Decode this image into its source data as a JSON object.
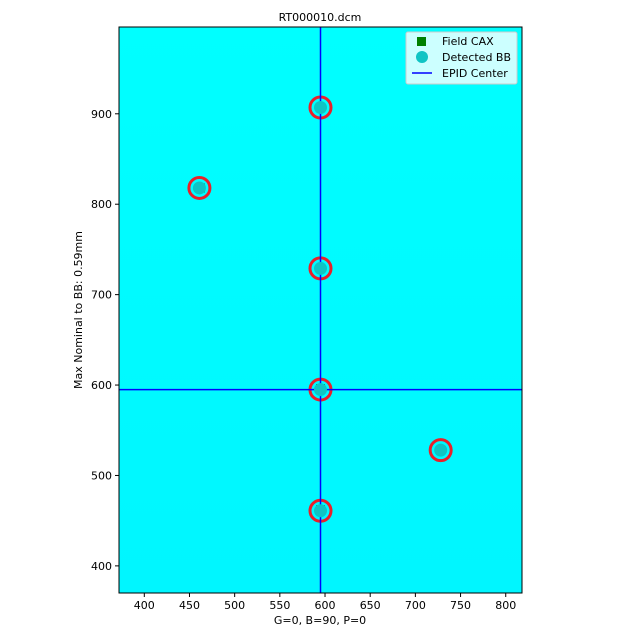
{
  "chart_data": {
    "type": "scatter",
    "title": "RT000010.dcm",
    "xlabel": "G=0, B=90, P=0",
    "ylabel": "Max Nominal to BB: 0.59mm",
    "xlim": [
      372,
      818
    ],
    "ylim": [
      996,
      370
    ],
    "y_inverted": true,
    "xticks": [
      400,
      450,
      500,
      550,
      600,
      650,
      700,
      750,
      800
    ],
    "yticks": [
      400,
      500,
      600,
      700,
      800,
      900
    ],
    "grid": false,
    "legend_position": "top-right",
    "background_color": "#00ffff",
    "field_color": "#ff00ff",
    "field_edge_color": "#e8202a",
    "epid_center": {
      "x": 595,
      "y": 595
    },
    "fields": [
      {
        "x": 595,
        "y": 462,
        "half_width": 45,
        "half_height": 50
      },
      {
        "x": 728,
        "y": 528,
        "half_width": 45,
        "half_height": 50
      },
      {
        "x": 595,
        "y": 596,
        "half_width": 45,
        "half_height": 50
      },
      {
        "x": 595,
        "y": 729,
        "half_width": 45,
        "half_height": 50
      },
      {
        "x": 462,
        "y": 818,
        "half_width": 45,
        "half_height": 50
      },
      {
        "x": 595,
        "y": 907,
        "half_width": 45,
        "half_height": 50
      }
    ],
    "series": [
      {
        "name": "Field CAX",
        "marker": "square",
        "color": "#008000",
        "points": [
          [
            595,
            462
          ],
          [
            728,
            528
          ],
          [
            595,
            596
          ],
          [
            595,
            729
          ],
          [
            462,
            818
          ],
          [
            595,
            907
          ]
        ]
      },
      {
        "name": "Detected BB",
        "marker": "circle",
        "color": "#10c4c4",
        "points": [
          [
            595,
            461
          ],
          [
            728,
            528
          ],
          [
            595,
            595
          ],
          [
            595,
            729
          ],
          [
            461,
            818
          ],
          [
            595,
            907
          ]
        ]
      },
      {
        "name": "EPID Center",
        "marker": "line",
        "color": "#0000ff",
        "points": [
          [
            595,
            595
          ]
        ]
      }
    ]
  }
}
